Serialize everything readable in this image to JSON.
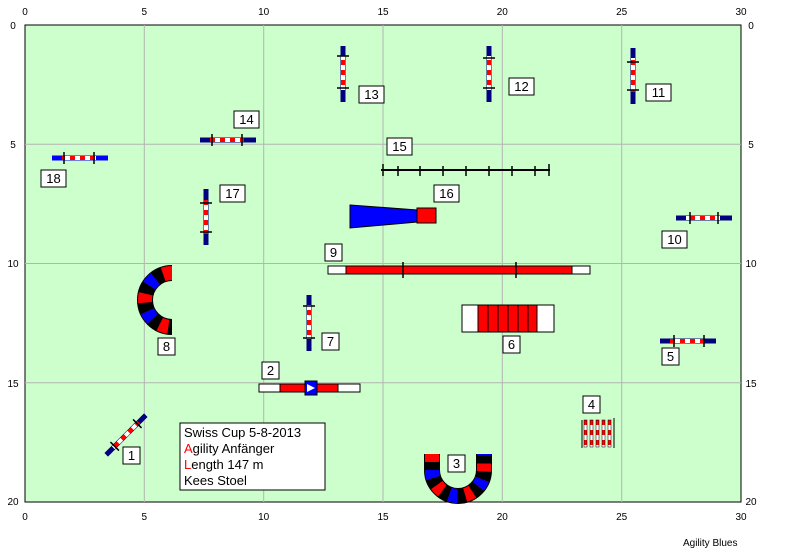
{
  "x_ticks": [
    "0",
    "5",
    "10",
    "15",
    "20",
    "25",
    "30"
  ],
  "y_ticks": [
    "0",
    "5",
    "10",
    "15",
    "20"
  ],
  "obstacle_numbers": [
    "1",
    "2",
    "3",
    "4",
    "5",
    "6",
    "7",
    "8",
    "9",
    "10",
    "11",
    "12",
    "13",
    "14",
    "15",
    "16",
    "17",
    "18"
  ],
  "info": {
    "line1": "Swiss Cup 5-8-2013",
    "line2_initial": "A",
    "line2_rest": "gility Anfänger",
    "line3_initial": "L",
    "line3_rest": "ength 147 m",
    "line4": "Kees Stoel"
  },
  "brand": "Agility Blues",
  "colors": {
    "field": "#ccffcc",
    "grid": "#b4b4b4",
    "red": "#ff0000",
    "blue": "#0000ff",
    "navy": "#000080"
  }
}
